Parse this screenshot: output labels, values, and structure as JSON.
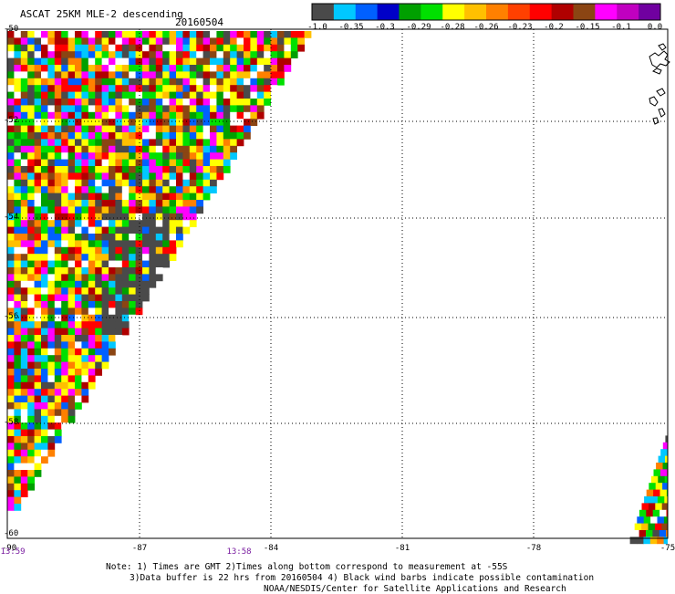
{
  "header": {
    "title": "ASCAT 25KM MLE-2 descending",
    "date": "20160504"
  },
  "colorbar": {
    "colors": [
      "#4a4a4a",
      "#00c8ff",
      "#0060ff",
      "#0000c8",
      "#00a000",
      "#00e000",
      "#ffff00",
      "#ffc000",
      "#ff8000",
      "#ff4000",
      "#ff0000",
      "#b00000",
      "#8b4513",
      "#ff00ff",
      "#c000c0",
      "#7000a0"
    ],
    "labels": [
      "-1.0",
      "-0.35",
      "-0.3",
      "-0.29",
      "-0.28",
      "-0.26",
      "-0.23",
      "-0.2",
      "-0.15",
      "-0.1",
      "0.0"
    ]
  },
  "axes": {
    "lat_labels": [
      "-50",
      "-52",
      "-54",
      "-56",
      "-58",
      "-60"
    ],
    "lon_labels": [
      "-90",
      "-87",
      "-84",
      "-81",
      "-78",
      "-75"
    ]
  },
  "times": [
    "13:59",
    "13:58"
  ],
  "notes": [
    "Note: 1) Times are GMT 2)Times along bottom correspond to measurement at -55S",
    "3)Data buffer is 22 hrs from 20160504 4) Black wind barbs indicate possible contamination",
    "NOAA/NESDIS/Center for Satellite Applications and Research"
  ]
}
